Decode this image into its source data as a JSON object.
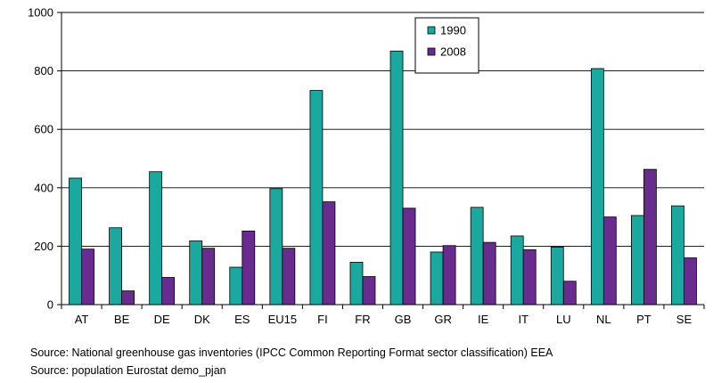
{
  "chart_data": {
    "type": "bar",
    "categories": [
      "AT",
      "BE",
      "DE",
      "DK",
      "ES",
      "EU15",
      "FI",
      "FR",
      "GB",
      "GR",
      "IE",
      "IT",
      "LU",
      "NL",
      "PT",
      "SE"
    ],
    "series": [
      {
        "name": "1990",
        "color": "#1ba89f",
        "values": [
          433,
          263,
          455,
          218,
          128,
          397,
          733,
          145,
          868,
          180,
          333,
          235,
          197,
          808,
          305,
          338
        ]
      },
      {
        "name": "2008",
        "color": "#6a2b8f",
        "values": [
          190,
          47,
          93,
          193,
          252,
          193,
          352,
          96,
          330,
          202,
          213,
          188,
          80,
          300,
          463,
          160
        ]
      }
    ],
    "ylim": [
      0,
      1000
    ],
    "yticks": [
      0,
      200,
      400,
      600,
      800,
      1000
    ],
    "grid": true,
    "legend": "top-center"
  },
  "sources": [
    "Source: National greenhouse gas inventories (IPCC Common Reporting Format sector classification) EEA",
    "Source: population Eurostat demo_pjan"
  ]
}
